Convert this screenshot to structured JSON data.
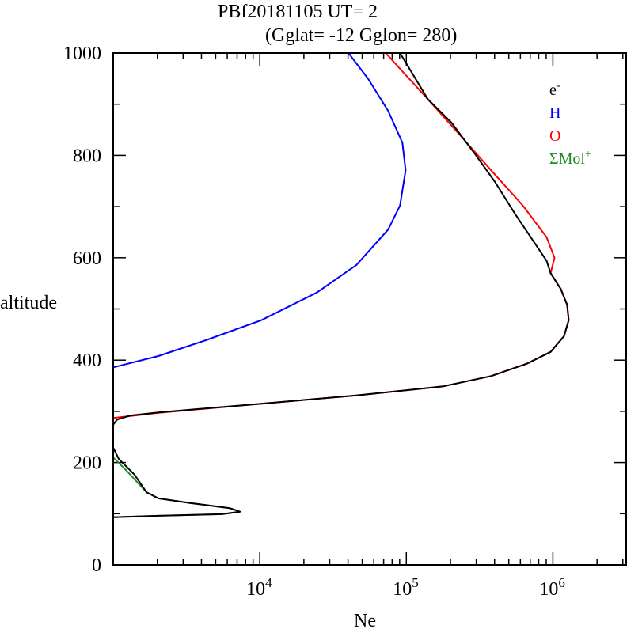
{
  "chart_data": {
    "type": "line",
    "title": "PBf20181105   UT=  2",
    "subtitle": "(Gglat= -12   Gglon=  280)",
    "xlabel": "Ne",
    "ylabel": "altitude",
    "x_scale": "log",
    "xlim_log10": [
      3.0,
      6.5
    ],
    "ylim": [
      0,
      1000
    ],
    "yticks": [
      "0",
      "200",
      "400",
      "600",
      "800",
      "1000"
    ],
    "ytick_values": [
      0,
      200,
      400,
      600,
      800,
      1000
    ],
    "xticks": [
      {
        "base": "10",
        "exp": "4",
        "log10": 4
      },
      {
        "base": "10",
        "exp": "5",
        "log10": 5
      },
      {
        "base": "10",
        "exp": "6",
        "log10": 6
      }
    ],
    "legend_position": "top-right",
    "point_format": "[log10(Ne), altitude]",
    "series": [
      {
        "name": "e-",
        "label": "e",
        "sup": "-",
        "color": "#000000",
        "segments": [
          [
            [
              3.0,
              274
            ],
            [
              3.027,
              284
            ],
            [
              3.119,
              292
            ],
            [
              3.308,
              298
            ],
            [
              4.011,
              315
            ],
            [
              4.659,
              331
            ],
            [
              5.254,
              349
            ],
            [
              5.578,
              369
            ],
            [
              5.822,
              393
            ],
            [
              5.984,
              416
            ],
            [
              6.076,
              447
            ],
            [
              6.108,
              478
            ],
            [
              6.097,
              508
            ],
            [
              6.054,
              539
            ],
            [
              5.984,
              570
            ],
            [
              5.957,
              594
            ],
            [
              5.849,
              640
            ],
            [
              5.741,
              686
            ],
            [
              5.605,
              748
            ],
            [
              5.47,
              802
            ],
            [
              5.308,
              864
            ],
            [
              5.146,
              910
            ],
            [
              4.957,
              1000
            ]
          ],
          [
            [
              3.0,
              229
            ],
            [
              3.038,
              207
            ],
            [
              3.146,
              176
            ],
            [
              3.227,
              142
            ],
            [
              3.308,
              130
            ],
            [
              3.524,
              121
            ],
            [
              3.795,
              111
            ],
            [
              3.865,
              104
            ],
            [
              3.741,
              99
            ],
            [
              3.308,
              96
            ],
            [
              3.0,
              93
            ]
          ]
        ]
      },
      {
        "name": "H+",
        "label": "H",
        "sup": "+",
        "color": "#0000ff",
        "segments": [
          [
            [
              3.0,
              386
            ],
            [
              3.308,
              408
            ],
            [
              3.632,
              439
            ],
            [
              4.011,
              478
            ],
            [
              4.389,
              532
            ],
            [
              4.659,
              586
            ],
            [
              4.876,
              655
            ],
            [
              4.957,
              702
            ],
            [
              4.995,
              771
            ],
            [
              4.973,
              825
            ],
            [
              4.876,
              887
            ],
            [
              4.741,
              949
            ],
            [
              4.605,
              1000
            ]
          ]
        ]
      },
      {
        "name": "O+",
        "label": "O",
        "sup": "+",
        "color": "#ff0000",
        "segments": [
          [
            [
              3.0,
              287
            ],
            [
              3.308,
              297
            ],
            [
              4.011,
              315
            ],
            [
              4.659,
              331
            ],
            [
              5.254,
              349
            ],
            [
              5.578,
              369
            ],
            [
              5.822,
              393
            ],
            [
              5.984,
              416
            ],
            [
              6.076,
              447
            ],
            [
              6.108,
              478
            ],
            [
              6.097,
              508
            ],
            [
              6.054,
              539
            ],
            [
              5.984,
              570
            ],
            [
              6.011,
              600
            ],
            [
              5.957,
              640
            ],
            [
              5.795,
              702
            ],
            [
              5.578,
              771
            ],
            [
              5.362,
              841
            ],
            [
              5.146,
              910
            ],
            [
              4.859,
              1000
            ]
          ]
        ]
      },
      {
        "name": "ΣMol+",
        "label": "ΣMol",
        "sup": "+",
        "color": "#228b22",
        "segments": [
          [
            [
              3.0,
              210
            ],
            [
              3.092,
              184
            ],
            [
              3.227,
              142
            ],
            [
              3.308,
              130
            ],
            [
              3.524,
              121
            ],
            [
              3.795,
              111
            ],
            [
              3.865,
              104
            ],
            [
              3.741,
              99
            ],
            [
              3.308,
              96
            ],
            [
              3.0,
              93
            ]
          ]
        ]
      }
    ]
  }
}
